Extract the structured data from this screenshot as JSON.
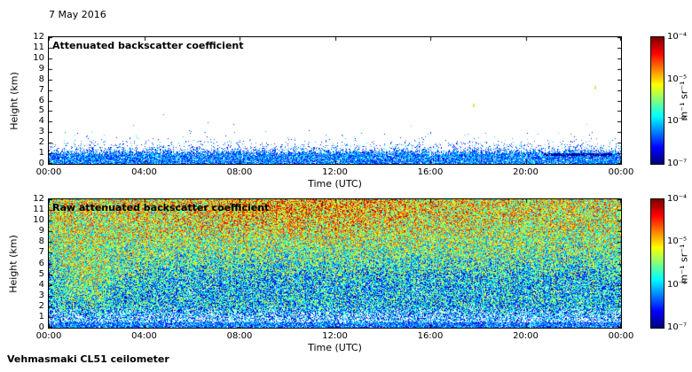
{
  "page": {
    "date_label": "7 May 2016",
    "footer": "Vehmasmaki CL51 ceilometer",
    "background": "#ffffff",
    "axis_color": "#000000"
  },
  "chart_data": [
    {
      "type": "heatmap",
      "title": "Attenuated backscatter coefficient",
      "xlabel": "Time (UTC)",
      "ylabel": "Height (km)",
      "x_ticks": [
        "00:00",
        "04:00",
        "08:00",
        "12:00",
        "16:00",
        "20:00",
        "00:00"
      ],
      "x_range_hours": [
        0,
        24
      ],
      "y_ticks": [
        0,
        1,
        2,
        3,
        4,
        5,
        6,
        7,
        8,
        9,
        10,
        11,
        12
      ],
      "y_range_km": [
        0,
        12
      ],
      "colorbar": {
        "colormap": "jet",
        "scale": "log",
        "min": 1e-07,
        "max": 0.0001,
        "tick_labels": [
          "10⁻⁴",
          "10⁻⁵",
          "10⁻⁶",
          "10⁻⁷"
        ],
        "units": "m⁻¹ sr⁻¹"
      },
      "content_summary": "Cloud-screened attenuated backscatter over 24 h: dense blue aerosol/boundary-layer speckle below about 1.3 km with a jagged top near 1-2 km, clear (white) air above; a darker navy streak near 0.85 km around 21:00-23:30; two tiny elevated cloud returns near 17:50 at 5.5 km and 22:50 at 7.2 km.",
      "render": {
        "mode": "sparse",
        "seed": 1337,
        "band_base_km": 0.85,
        "band_jitter_km": 0.45,
        "decay_km": 0.4,
        "white_in_band": 0.13,
        "dark_streak": {
          "t0": 0.865,
          "t1": 0.985,
          "km": 0.85,
          "half_km": 0.12
        },
        "features": [
          {
            "hour": 17.8,
            "km": 5.5,
            "value": 0.55
          },
          {
            "hour": 22.9,
            "km": 7.2,
            "value": 0.55
          }
        ]
      }
    },
    {
      "type": "heatmap",
      "title": "Raw attenuated backscatter coefficient",
      "xlabel": "Time (UTC)",
      "ylabel": "Height (km)",
      "x_ticks": [
        "00:00",
        "04:00",
        "08:00",
        "12:00",
        "16:00",
        "20:00",
        "00:00"
      ],
      "x_range_hours": [
        0,
        24
      ],
      "y_ticks": [
        0,
        1,
        2,
        3,
        4,
        5,
        6,
        7,
        8,
        9,
        10,
        11,
        12
      ],
      "y_range_km": [
        0,
        12
      ],
      "colorbar": {
        "colormap": "jet",
        "scale": "log",
        "min": 1e-07,
        "max": 0.0001,
        "tick_labels": [
          "10⁻⁴",
          "10⁻⁵",
          "10⁻⁶",
          "10⁻⁷"
        ],
        "units": "m⁻¹ sr⁻¹"
      },
      "content_summary": "Unfiltered raw backscatter dominated by solar background noise: speckle values increase with height, strongest orange/red patch at 8-12 km around 06:00-16:00, green mid-levels, bluer band near 3-5 km, blue low-signal region below 2 km with many white dropouts, faint green plumes near 01:00-03:00 at 2-7 km.",
      "render": {
        "mode": "full",
        "seed": 2016,
        "spread": 0.6,
        "base": 0.35,
        "height_gain": 0.235,
        "midday_gain": 0.13,
        "midday_center": 0.44,
        "midday_width": 0.27,
        "low_drop": 0.17,
        "band4_drop": 0.06,
        "plume_gain": 0.17,
        "plume_t": 0.075,
        "plume_tw": 0.06,
        "plume_km": 4.5,
        "plume_kw": 2.2,
        "white_base": 0.012,
        "white_low": 0.24,
        "red_speck_p": 0.02,
        "col_stripe": 0.1
      }
    }
  ]
}
